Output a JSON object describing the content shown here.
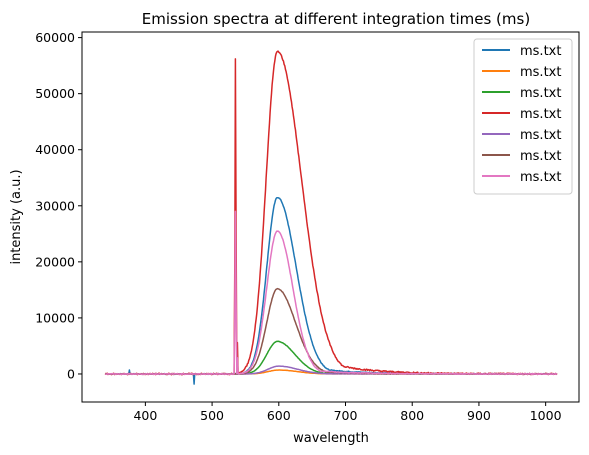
{
  "chart_data": {
    "type": "line",
    "title": "Emission spectra at different integration times (ms)",
    "xlabel": "wavelength",
    "ylabel": "intensity (a.u.)",
    "xlim": [
      305,
      1050
    ],
    "ylim": [
      -5000,
      61000
    ],
    "xticks": [
      400,
      500,
      600,
      700,
      800,
      900,
      1000
    ],
    "yticks": [
      0,
      10000,
      20000,
      30000,
      40000,
      50000,
      60000
    ],
    "grid": false,
    "legend_position": "top-right",
    "x_range": [
      340,
      1017
    ],
    "series": [
      {
        "name": "ms.txt",
        "color": "#1f77b4",
        "peak": 31500,
        "center": 598,
        "sigma_left": 16,
        "sigma_right": 28,
        "spike": 0,
        "tail": 0.08,
        "noise": 150
      },
      {
        "name": "ms.txt",
        "color": "#ff7f0e",
        "peak": 700,
        "center": 600,
        "sigma_left": 16,
        "sigma_right": 28,
        "spike": 0,
        "tail": 0.08,
        "noise": 20
      },
      {
        "name": "ms.txt",
        "color": "#2ca02c",
        "peak": 5800,
        "center": 598,
        "sigma_left": 16,
        "sigma_right": 26,
        "spike": 0,
        "tail": 0.08,
        "noise": 60
      },
      {
        "name": "ms.txt",
        "color": "#d62728",
        "peak": 57500,
        "center": 598,
        "sigma_left": 17,
        "sigma_right": 36,
        "spike": 56200,
        "tail": 0.12,
        "noise": 250
      },
      {
        "name": "ms.txt",
        "color": "#9467bd",
        "peak": 1400,
        "center": 600,
        "sigma_left": 16,
        "sigma_right": 28,
        "spike": 0,
        "tail": 0.08,
        "noise": 25
      },
      {
        "name": "ms.txt",
        "color": "#8c564b",
        "peak": 15200,
        "center": 598,
        "sigma_left": 16,
        "sigma_right": 27,
        "spike": 0,
        "tail": 0.08,
        "noise": 100
      },
      {
        "name": "ms.txt",
        "color": "#e377c2",
        "peak": 25500,
        "center": 598,
        "sigma_left": 16,
        "sigma_right": 23,
        "spike": 29000,
        "tail": 0.06,
        "noise": 120
      }
    ]
  }
}
